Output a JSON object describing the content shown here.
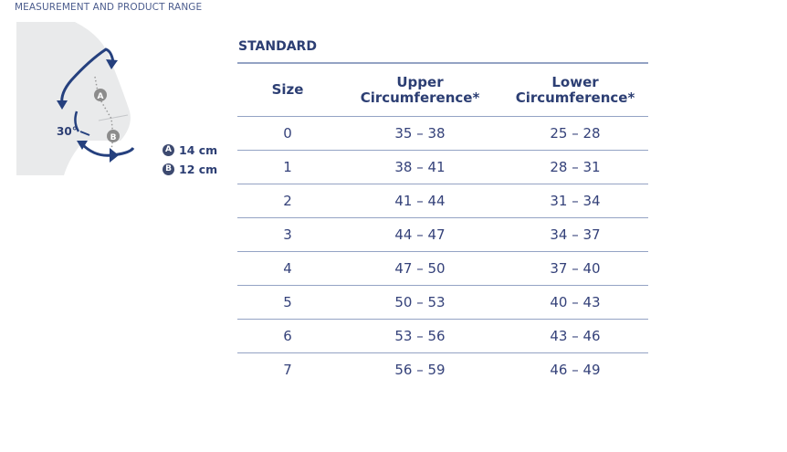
{
  "header": "MEASUREMENT AND PRODUCT RANGE",
  "illustration": {
    "angle_label": "30°",
    "marker_a": "A",
    "marker_b": "B"
  },
  "legend": [
    {
      "badge": "A",
      "value": "14 cm"
    },
    {
      "badge": "B",
      "value": "12 cm"
    }
  ],
  "table": {
    "title": "STANDARD",
    "headers": {
      "size": "Size",
      "upper_1": "Upper",
      "upper_2": "Circumference*",
      "lower_1": "Lower",
      "lower_2": "Circumference*"
    },
    "rows": [
      {
        "size": "0",
        "upper": "35 – 38",
        "lower": "25 – 28"
      },
      {
        "size": "1",
        "upper": "38 – 41",
        "lower": "28 – 31"
      },
      {
        "size": "2",
        "upper": "41 – 44",
        "lower": "31 – 34"
      },
      {
        "size": "3",
        "upper": "44 – 47",
        "lower": "34 – 37"
      },
      {
        "size": "4",
        "upper": "47 – 50",
        "lower": "37 – 40"
      },
      {
        "size": "5",
        "upper": "50 – 53",
        "lower": "40 – 43"
      },
      {
        "size": "6",
        "upper": "53 – 56",
        "lower": "43 – 46"
      },
      {
        "size": "7",
        "upper": "56 – 59",
        "lower": "46 – 49"
      }
    ]
  },
  "colors": {
    "primary": "#2c3e73",
    "rule": "#94a3c4",
    "leg_fill": "#e9eaeb",
    "arrow": "#25407e",
    "marker": "#8c8c8c"
  }
}
